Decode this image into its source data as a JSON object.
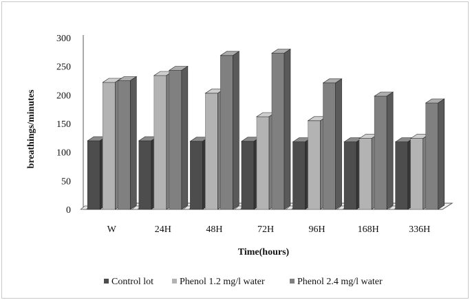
{
  "chart_data": {
    "type": "bar",
    "title": "",
    "xlabel": "Time(hours)",
    "ylabel": "breathings/minutes",
    "ylim": [
      0,
      300
    ],
    "yticks": [
      "0",
      "50",
      "100",
      "150",
      "200",
      "250",
      "300"
    ],
    "categories": [
      "W",
      "24H",
      "48H",
      "72H",
      "96H",
      "168H",
      "336H"
    ],
    "series": [
      {
        "name": "Control lot",
        "values": [
          120,
          120,
          119,
          119,
          118,
          118,
          118
        ],
        "color": "#4d4d4d"
      },
      {
        "name": "Phenol 1.2 mg/l water",
        "values": [
          222,
          234,
          203,
          162,
          155,
          124,
          124
        ],
        "color": "#b3b3b3"
      },
      {
        "name": "Phenol 2.4 mg/l water",
        "values": [
          225,
          243,
          269,
          273,
          221,
          198,
          186
        ],
        "color": "#808080"
      }
    ],
    "legend_position": "bottom",
    "grid": false,
    "style": "3d-column"
  }
}
